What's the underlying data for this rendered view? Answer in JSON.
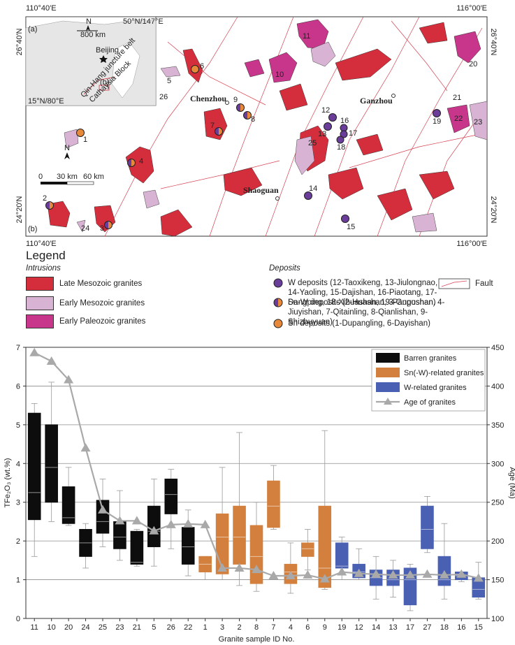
{
  "map": {
    "panel_a": "(a)",
    "panel_b": "(b)",
    "coords": [
      "110°40′E",
      "116°00′E",
      "26°40′N",
      "26°40′N",
      "24°20′N",
      "24°20′N",
      "110°40′E",
      "116°00′E"
    ],
    "inset": {
      "north": "N",
      "scale": "800 km",
      "corner_ne": "50°N/147°E",
      "capital": "Beijing",
      "corner_sw": "15°N/80°E",
      "belt": "Qin-Hang juncture belt",
      "block": "Cathaysia Block",
      "box_label": "(b)"
    },
    "scale": {
      "north": "N",
      "ticks": [
        "0",
        "30 km",
        "60 km"
      ]
    },
    "cities": [
      "Chenzhou",
      "Ganzhou",
      "Shaoguan"
    ],
    "sample_ids": [
      "11",
      "10",
      "20",
      "21",
      "22",
      "23",
      "6",
      "5",
      "26",
      "9",
      "7",
      "8",
      "12",
      "13",
      "16",
      "17",
      "18",
      "25",
      "19",
      "1",
      "4",
      "14",
      "15",
      "2",
      "3",
      "24"
    ]
  },
  "legend": {
    "title": "Legend",
    "intrusions_title": "Intrusions",
    "intrusions": [
      "Late Mesozoic granites",
      "Early Mesozoic granites",
      "Early Paleozoic granites"
    ],
    "deposits_title": "Deposits",
    "deposits": [
      "W deposits (12-Taoxikeng, 13-Jiulongnao, 14-Yaoling, 15-Dajishan, 16-Piaotang, 17-Dangping, 18-Xihuashan, 19-Pangushan)",
      "Sn-W deposits (2-Huashan, 3-Guposhan, 4-Jiuyishan, 7-Qitainling, 8-Qianlishan, 9-Shizhuyuan)",
      "Sn deposits (1-Dupangling, 6-Dayishan)"
    ],
    "fault": "Fault"
  },
  "chart_data": {
    "type": "box",
    "panel_label": "(c)",
    "x_label": "Granite sample ID No.",
    "y_label": "TFe₂O₃ (wt.%)",
    "y2_label": "Age (Ma)",
    "categories": [
      "11",
      "10",
      "20",
      "24",
      "25",
      "23",
      "21",
      "5",
      "26",
      "22",
      "1",
      "3",
      "2",
      "8",
      "7",
      "4",
      "6",
      "9",
      "19",
      "12",
      "14",
      "13",
      "17",
      "27",
      "18",
      "16",
      "15"
    ],
    "series": [
      {
        "name": "Barren granites",
        "color": "#0d0d0d",
        "low": [
          1.6,
          2.5,
          2.4,
          1.3,
          1.85,
          1.5,
          1.35,
          1.35,
          1.8,
          1.1,
          null,
          null,
          null,
          null,
          null,
          null,
          null,
          null,
          null,
          null,
          null,
          null,
          null,
          null,
          null,
          null,
          null
        ],
        "q1": [
          2.55,
          3.0,
          2.45,
          1.6,
          2.2,
          1.8,
          1.4,
          1.85,
          2.7,
          1.4,
          null,
          null,
          null,
          null,
          null,
          null,
          null,
          null,
          null,
          null,
          null,
          null,
          null,
          null,
          null,
          null,
          null
        ],
        "median": [
          3.25,
          3.9,
          2.6,
          1.95,
          2.5,
          2.1,
          1.45,
          2.25,
          3.2,
          1.85,
          null,
          null,
          null,
          null,
          null,
          null,
          null,
          null,
          null,
          null,
          null,
          null,
          null,
          null,
          null,
          null,
          null
        ],
        "q3": [
          5.3,
          5.0,
          3.4,
          2.3,
          3.05,
          2.5,
          2.25,
          2.9,
          3.6,
          2.35,
          null,
          null,
          null,
          null,
          null,
          null,
          null,
          null,
          null,
          null,
          null,
          null,
          null,
          null,
          null,
          null,
          null
        ],
        "high": [
          5.55,
          6.1,
          3.9,
          2.45,
          3.6,
          3.3,
          2.3,
          3.6,
          3.85,
          2.8,
          null,
          null,
          null,
          null,
          null,
          null,
          null,
          null,
          null,
          null,
          null,
          null,
          null,
          null,
          null,
          null,
          null
        ]
      },
      {
        "name": "Sn(-W)-related granites",
        "color": "#d3803e",
        "low": [
          null,
          null,
          null,
          null,
          null,
          null,
          null,
          null,
          null,
          null,
          1.0,
          1.0,
          0.85,
          0.7,
          2.3,
          0.65,
          1.25,
          0.75,
          null,
          null,
          null,
          null,
          null,
          null,
          null,
          null,
          null
        ],
        "q1": [
          null,
          null,
          null,
          null,
          null,
          null,
          null,
          null,
          null,
          null,
          1.2,
          1.15,
          1.4,
          0.9,
          2.35,
          0.9,
          1.6,
          0.8,
          null,
          null,
          null,
          null,
          null,
          null,
          null,
          null,
          null
        ],
        "median": [
          null,
          null,
          null,
          null,
          null,
          null,
          null,
          null,
          null,
          null,
          1.4,
          2.1,
          2.1,
          1.6,
          2.9,
          1.2,
          1.8,
          1.3,
          null,
          null,
          null,
          null,
          null,
          null,
          null,
          null,
          null
        ],
        "q3": [
          null,
          null,
          null,
          null,
          null,
          null,
          null,
          null,
          null,
          null,
          1.6,
          2.7,
          2.9,
          2.4,
          3.55,
          1.4,
          1.95,
          2.9,
          null,
          null,
          null,
          null,
          null,
          null,
          null,
          null,
          null
        ],
        "high": [
          null,
          null,
          null,
          null,
          null,
          null,
          null,
          null,
          null,
          null,
          1.6,
          3.9,
          4.8,
          3.0,
          3.95,
          1.95,
          2.3,
          4.85,
          null,
          null,
          null,
          null,
          null,
          null,
          null,
          null,
          null
        ]
      },
      {
        "name": "W-related granites",
        "color": "#4a60b2",
        "low": [
          null,
          null,
          null,
          null,
          null,
          null,
          null,
          null,
          null,
          null,
          null,
          null,
          null,
          null,
          null,
          null,
          null,
          null,
          1.0,
          1.0,
          0.5,
          0.55,
          0.2,
          1.7,
          0.5,
          0.95,
          0.5
        ],
        "q1": [
          null,
          null,
          null,
          null,
          null,
          null,
          null,
          null,
          null,
          null,
          null,
          null,
          null,
          null,
          null,
          null,
          null,
          null,
          1.3,
          1.05,
          0.85,
          0.85,
          0.35,
          1.8,
          0.85,
          1.0,
          0.55
        ],
        "median": [
          null,
          null,
          null,
          null,
          null,
          null,
          null,
          null,
          null,
          null,
          null,
          null,
          null,
          null,
          null,
          null,
          null,
          null,
          1.35,
          1.2,
          1.05,
          1.0,
          1.0,
          2.3,
          1.0,
          1.1,
          0.75
        ],
        "q3": [
          null,
          null,
          null,
          null,
          null,
          null,
          null,
          null,
          null,
          null,
          null,
          null,
          null,
          null,
          null,
          null,
          null,
          null,
          1.95,
          1.4,
          1.25,
          1.25,
          1.3,
          2.9,
          1.6,
          1.2,
          1.05
        ],
        "high": [
          null,
          null,
          null,
          null,
          null,
          null,
          null,
          null,
          null,
          null,
          null,
          null,
          null,
          null,
          null,
          null,
          null,
          null,
          2.1,
          1.8,
          1.6,
          1.5,
          1.4,
          3.15,
          2.45,
          1.2,
          1.45
        ]
      },
      {
        "name": "Age of granites",
        "type": "line",
        "axis": "y2",
        "color": "#a9a9a9",
        "values": [
          443,
          432,
          408,
          320,
          240,
          226,
          226,
          213,
          221,
          222,
          221,
          165,
          165,
          163,
          155,
          155,
          156,
          151,
          160,
          158,
          157,
          156,
          156,
          157,
          156,
          157,
          152
        ]
      }
    ],
    "ylim": [
      0,
      7
    ],
    "yticks": [
      0,
      1,
      2,
      3,
      4,
      5,
      6,
      7
    ],
    "y2lim": [
      100,
      450
    ],
    "y2ticks": [
      100,
      150,
      200,
      250,
      300,
      350,
      400,
      450
    ],
    "grid": true,
    "legend": "upper right"
  }
}
